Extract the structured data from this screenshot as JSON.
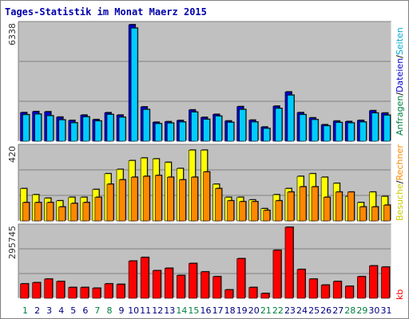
{
  "title": "Tages-Statistik im Monat Maerz 2015",
  "colors": {
    "background": "#ffffff",
    "plot_bg": "#c0c0c0",
    "anfragen": "#0000cc",
    "dateien": "#00ccff",
    "seiten": "#ffff00",
    "besuche": "#ff8800",
    "kb": "#ff0000",
    "weekend_label": "#008040",
    "weekday_label": "#000080",
    "legend_sep": "#000000"
  },
  "legend": {
    "panel1": [
      {
        "text": "Anfragen",
        "color": "#008040"
      },
      {
        "text": "/",
        "color": "#000000"
      },
      {
        "text": "Dateien",
        "color": "#0000cc"
      },
      {
        "text": "/",
        "color": "#000000"
      },
      {
        "text": "Seiten",
        "color": "#00aacc"
      }
    ],
    "panel2": [
      {
        "text": "Besuche",
        "color": "#cccc00"
      },
      {
        "text": "/",
        "color": "#000000"
      },
      {
        "text": "Rechner",
        "color": "#ff8800"
      }
    ],
    "panel3": [
      {
        "text": "kb",
        "color": "#ff0000"
      }
    ]
  },
  "chart_data": [
    {
      "type": "bar",
      "panel": "top",
      "ymax_label": "6338",
      "ylim": [
        0,
        6338
      ],
      "categories": [
        "1",
        "2",
        "3",
        "4",
        "5",
        "6",
        "7",
        "8",
        "9",
        "10",
        "11",
        "12",
        "13",
        "14",
        "15",
        "16",
        "17",
        "18",
        "19",
        "20",
        "21",
        "22",
        "23",
        "24",
        "25",
        "26",
        "27",
        "28",
        "29",
        "30",
        "31"
      ],
      "weekend_days": [
        "1",
        "7",
        "8",
        "14",
        "15",
        "21",
        "22",
        "28",
        "29"
      ],
      "series": [
        {
          "name": "Anfragen",
          "color": "#0000cc",
          "values": [
            1555,
            1610,
            1600,
            1310,
            1130,
            1420,
            1175,
            1550,
            1420,
            6338,
            1865,
            1030,
            1060,
            1125,
            1700,
            1295,
            1460,
            1100,
            1880,
            1145,
            770,
            1905,
            2680,
            1555,
            1270,
            895,
            1095,
            1070,
            1130,
            1660,
            1530
          ]
        },
        {
          "name": "Dateien",
          "color": "#00ccff",
          "values": [
            1435,
            1470,
            1380,
            1155,
            995,
            1320,
            1095,
            1450,
            1300,
            6150,
            1720,
            950,
            980,
            1040,
            1580,
            1185,
            1360,
            1020,
            1720,
            1040,
            690,
            1780,
            2500,
            1440,
            1170,
            830,
            1010,
            990,
            1040,
            1530,
            1410
          ]
        }
      ]
    },
    {
      "type": "bar",
      "panel": "middle",
      "ymax_label": "420",
      "ylim": [
        0,
        420
      ],
      "categories": [
        "1",
        "2",
        "3",
        "4",
        "5",
        "6",
        "7",
        "8",
        "9",
        "10",
        "11",
        "12",
        "13",
        "14",
        "15",
        "16",
        "17",
        "18",
        "19",
        "20",
        "21",
        "22",
        "23",
        "24",
        "25",
        "26",
        "27",
        "28",
        "29",
        "30",
        "31"
      ],
      "series": [
        {
          "name": "Seiten",
          "color": "#ffff00",
          "values": [
            185,
            150,
            130,
            115,
            135,
            135,
            180,
            270,
            295,
            345,
            360,
            355,
            335,
            300,
            405,
            405,
            210,
            135,
            135,
            120,
            70,
            150,
            185,
            255,
            270,
            250,
            215,
            140,
            105,
            165,
            140
          ]
        },
        {
          "name": "Besuche",
          "color": "#ff8800",
          "values": [
            105,
            105,
            105,
            80,
            100,
            105,
            135,
            210,
            235,
            250,
            255,
            260,
            250,
            235,
            250,
            280,
            185,
            115,
            110,
            110,
            60,
            115,
            165,
            195,
            195,
            135,
            165,
            165,
            80,
            80,
            90
          ]
        }
      ]
    },
    {
      "type": "bar",
      "panel": "bottom",
      "ymax_label": "295745",
      "ylim": [
        0,
        295745
      ],
      "categories": [
        "1",
        "2",
        "3",
        "4",
        "5",
        "6",
        "7",
        "8",
        "9",
        "10",
        "11",
        "12",
        "13",
        "14",
        "15",
        "16",
        "17",
        "18",
        "19",
        "20",
        "21",
        "22",
        "23",
        "24",
        "25",
        "26",
        "27",
        "28",
        "29",
        "30",
        "31"
      ],
      "series": [
        {
          "name": "kb",
          "color": "#ff0000",
          "values": [
            60000,
            65000,
            80000,
            70000,
            45000,
            45000,
            42000,
            60000,
            58000,
            155000,
            170000,
            115000,
            125000,
            95000,
            145000,
            110000,
            90000,
            35000,
            165000,
            45000,
            20000,
            200000,
            295745,
            120000,
            80000,
            55000,
            70000,
            50000,
            90000,
            135000,
            130000
          ]
        }
      ]
    }
  ]
}
